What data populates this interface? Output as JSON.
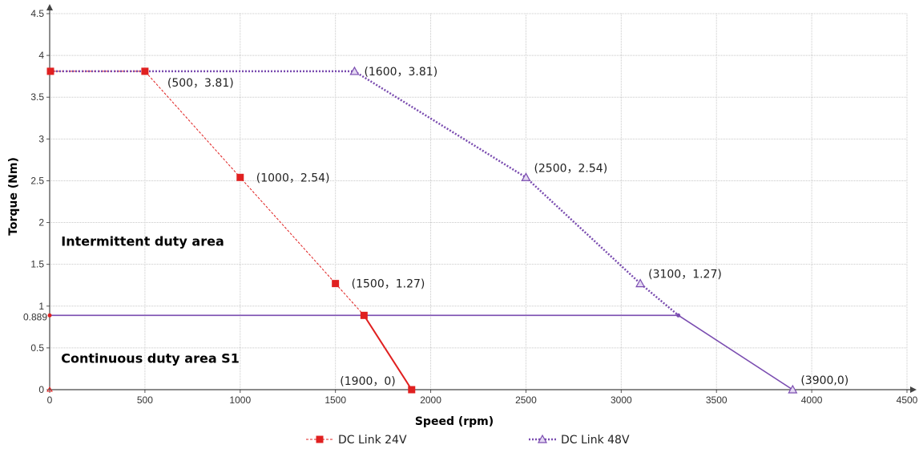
{
  "chart_data": {
    "type": "line",
    "xlabel": "Speed (rpm)",
    "ylabel": "Torque (Nm)",
    "xlim": [
      0,
      4500
    ],
    "ylim": [
      0,
      4.5
    ],
    "x_ticks": [
      "0",
      "500",
      "1000",
      "1500",
      "2000",
      "2500",
      "3000",
      "3500",
      "4000",
      "4500"
    ],
    "y_ticks": [
      "0",
      "0.5",
      "1",
      "1.5",
      "2",
      "2.5",
      "3",
      "3.5",
      "4",
      "4.5"
    ],
    "y_extra_tick": {
      "value": 0.889,
      "label": "0.889"
    },
    "grid": true,
    "legend_position": "bottom",
    "series": [
      {
        "name": "DC Link 24V",
        "color": "#e02020",
        "marker": "square",
        "points": [
          [
            0,
            3.81
          ],
          [
            500,
            3.81
          ],
          [
            1000,
            2.54
          ],
          [
            1500,
            1.27
          ],
          [
            1650,
            0.889
          ],
          [
            1900,
            0
          ]
        ],
        "continuous_segment": [
          [
            1650,
            0.889
          ],
          [
            1900,
            0
          ]
        ]
      },
      {
        "name": "DC Link 48V",
        "color": "#7a4cb0",
        "marker": "triangle",
        "points": [
          [
            0,
            3.81
          ],
          [
            1600,
            3.81
          ],
          [
            2500,
            2.54
          ],
          [
            3100,
            1.27
          ],
          [
            3300,
            0.889
          ],
          [
            3900,
            0
          ]
        ],
        "continuous_segment": [
          [
            3300,
            0.889
          ],
          [
            3900,
            0
          ]
        ]
      },
      {
        "name": "",
        "color": "#7a4cb0",
        "marker": "none",
        "points": [
          [
            0,
            0.889
          ],
          [
            3300,
            0.889
          ]
        ]
      }
    ],
    "annotations": [
      {
        "text": "(500，3.81)",
        "x": 500,
        "y": 3.81,
        "anchor": "below-right"
      },
      {
        "text": "(1000，2.54)",
        "x": 1000,
        "y": 2.54,
        "anchor": "right"
      },
      {
        "text": "(1500，1.27)",
        "x": 1500,
        "y": 1.27,
        "anchor": "right"
      },
      {
        "text": "(1900，0)",
        "x": 1900,
        "y": 0,
        "anchor": "above-left"
      },
      {
        "text": "(1600，3.81)",
        "x": 1600,
        "y": 3.81,
        "anchor": "right"
      },
      {
        "text": "(2500，2.54)",
        "x": 2500,
        "y": 2.54,
        "anchor": "above-right"
      },
      {
        "text": "(3100，1.27)",
        "x": 3100,
        "y": 1.27,
        "anchor": "above-right"
      },
      {
        "text": "(3900,0)",
        "x": 3900,
        "y": 0,
        "anchor": "above-right"
      }
    ],
    "area_labels": [
      {
        "text": "Intermittent duty area",
        "x": 60,
        "y": 1.72
      },
      {
        "text": "Continuous duty area S1",
        "x": 60,
        "y": 0.32
      }
    ]
  }
}
